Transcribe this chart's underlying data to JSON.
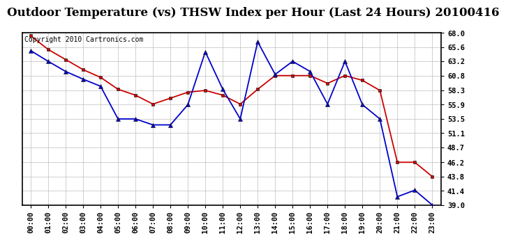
{
  "title": "Outdoor Temperature (vs) THSW Index per Hour (Last 24 Hours) 20100416",
  "copyright": "Copyright 2010 Cartronics.com",
  "hours": [
    "00:00",
    "01:00",
    "02:00",
    "03:00",
    "04:00",
    "05:00",
    "06:00",
    "07:00",
    "08:00",
    "09:00",
    "10:00",
    "11:00",
    "12:00",
    "13:00",
    "14:00",
    "15:00",
    "16:00",
    "17:00",
    "18:00",
    "19:00",
    "20:00",
    "21:00",
    "22:00",
    "23:00"
  ],
  "temp_red": [
    67.5,
    65.2,
    63.5,
    61.8,
    60.5,
    58.5,
    57.5,
    56.0,
    57.0,
    58.0,
    58.3,
    57.5,
    56.0,
    58.5,
    60.8,
    60.8,
    60.8,
    59.5,
    60.8,
    60.0,
    58.3,
    46.2,
    46.2,
    43.8
  ],
  "thsw_blue": [
    65.0,
    63.2,
    61.5,
    60.2,
    59.0,
    53.5,
    53.5,
    52.5,
    52.5,
    55.9,
    64.8,
    58.5,
    53.5,
    66.5,
    61.0,
    63.2,
    61.5,
    56.0,
    63.2,
    55.9,
    53.5,
    40.4,
    41.5,
    39.0
  ],
  "ylim_min": 39.0,
  "ylim_max": 68.0,
  "yticks": [
    39.0,
    41.4,
    43.8,
    46.2,
    48.7,
    51.1,
    53.5,
    55.9,
    58.3,
    60.8,
    63.2,
    65.6,
    68.0
  ],
  "red_color": "#cc0000",
  "blue_color": "#0000cc",
  "bg_color": "#ffffff",
  "grid_color": "#bbbbbb",
  "title_fontsize": 12,
  "copyright_fontsize": 7
}
